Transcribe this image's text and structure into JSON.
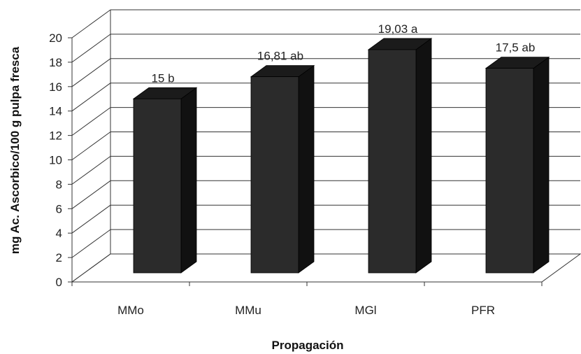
{
  "chart_data": {
    "type": "bar",
    "style": "3d-column",
    "categories": [
      "MMo",
      "MMu",
      "MGl",
      "PFR"
    ],
    "values": [
      15,
      16.81,
      19.03,
      17.5
    ],
    "data_labels": [
      "15 b",
      "16,81 ab",
      "19,03 a",
      "17,5 ab"
    ],
    "xlabel": "Propagación",
    "ylabel": "mg Ac. Ascorbico/100 g pulpa fresca",
    "ylim": [
      0,
      20
    ],
    "yticks": [
      0,
      2,
      4,
      6,
      8,
      10,
      12,
      14,
      16,
      18,
      20
    ],
    "grid": true,
    "legend": "none",
    "colors": {
      "bar_front": "#2b2b2b",
      "bar_side": "#111111",
      "bar_top": "#1b1b1b",
      "grid": "#333333"
    }
  }
}
